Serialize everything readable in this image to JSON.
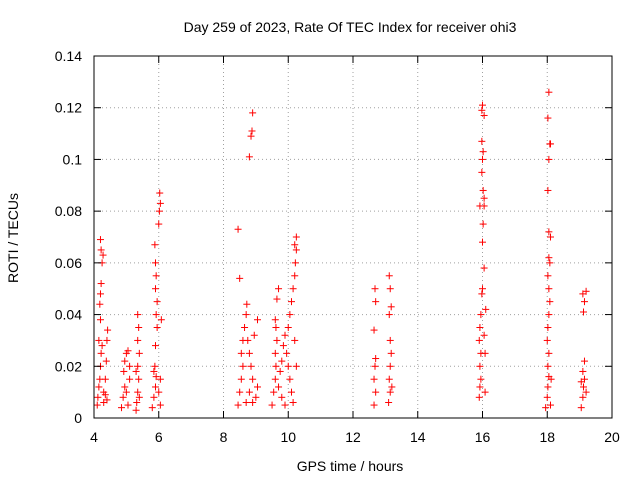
{
  "chart_data": {
    "type": "scatter",
    "title": "Day 259 of 2023, Rate Of TEC Index for receiver ohi3",
    "xlabel": "GPS time / hours",
    "ylabel": "ROTI / TECUs",
    "xlim": [
      4,
      20
    ],
    "ylim": [
      0,
      0.14
    ],
    "x_ticks": [
      4,
      6,
      8,
      10,
      12,
      14,
      16,
      18,
      20
    ],
    "y_ticks": [
      0,
      0.02,
      0.04,
      0.06,
      0.08,
      0.1,
      0.12,
      0.14
    ],
    "grid": true,
    "marker": "plus",
    "color": "#ff0000",
    "series": [
      {
        "points": [
          [
            4.1,
            0.005
          ],
          [
            4.12,
            0.008
          ],
          [
            4.15,
            0.012
          ],
          [
            4.18,
            0.015
          ],
          [
            4.2,
            0.02
          ],
          [
            4.22,
            0.025
          ],
          [
            4.25,
            0.028
          ],
          [
            4.15,
            0.03
          ],
          [
            4.2,
            0.038
          ],
          [
            4.18,
            0.044
          ],
          [
            4.2,
            0.048
          ],
          [
            4.22,
            0.052
          ],
          [
            4.25,
            0.06
          ],
          [
            4.28,
            0.063
          ],
          [
            4.22,
            0.065
          ],
          [
            4.2,
            0.069
          ],
          [
            4.3,
            0.01
          ],
          [
            4.35,
            0.015
          ],
          [
            4.38,
            0.022
          ],
          [
            4.4,
            0.03
          ],
          [
            4.42,
            0.034
          ],
          [
            4.3,
            0.006
          ],
          [
            4.35,
            0.009
          ],
          [
            4.4,
            0.007
          ],
          [
            4.85,
            0.004
          ],
          [
            4.9,
            0.008
          ],
          [
            4.95,
            0.012
          ],
          [
            4.92,
            0.018
          ],
          [
            4.95,
            0.022
          ],
          [
            5.0,
            0.025
          ],
          [
            5.05,
            0.026
          ],
          [
            5.0,
            0.01
          ],
          [
            5.05,
            0.005
          ],
          [
            5.1,
            0.015
          ],
          [
            5.1,
            0.02
          ],
          [
            5.3,
            0.003
          ],
          [
            5.32,
            0.006
          ],
          [
            5.35,
            0.01
          ],
          [
            5.38,
            0.015
          ],
          [
            5.35,
            0.02
          ],
          [
            5.4,
            0.025
          ],
          [
            5.35,
            0.03
          ],
          [
            5.38,
            0.035
          ],
          [
            5.35,
            0.04
          ],
          [
            5.3,
            0.018
          ],
          [
            5.4,
            0.008
          ],
          [
            5.8,
            0.004
          ],
          [
            5.85,
            0.008
          ],
          [
            5.9,
            0.012
          ],
          [
            5.92,
            0.016
          ],
          [
            5.88,
            0.02
          ],
          [
            5.9,
            0.028
          ],
          [
            5.95,
            0.035
          ],
          [
            5.92,
            0.04
          ],
          [
            5.95,
            0.045
          ],
          [
            5.9,
            0.05
          ],
          [
            5.92,
            0.055
          ],
          [
            5.9,
            0.06
          ],
          [
            5.88,
            0.067
          ],
          [
            6.0,
            0.075
          ],
          [
            6.02,
            0.08
          ],
          [
            6.05,
            0.083
          ],
          [
            6.03,
            0.087
          ],
          [
            6.0,
            0.01
          ],
          [
            6.05,
            0.015
          ],
          [
            6.05,
            0.005
          ],
          [
            6.08,
            0.038
          ],
          [
            5.85,
            0.018
          ],
          [
            8.45,
            0.073
          ],
          [
            8.5,
            0.054
          ],
          [
            8.45,
            0.005
          ],
          [
            8.5,
            0.01
          ],
          [
            8.55,
            0.015
          ],
          [
            8.6,
            0.02
          ],
          [
            8.55,
            0.025
          ],
          [
            8.6,
            0.03
          ],
          [
            8.65,
            0.035
          ],
          [
            8.7,
            0.04
          ],
          [
            8.72,
            0.044
          ],
          [
            8.75,
            0.03
          ],
          [
            8.8,
            0.025
          ],
          [
            8.85,
            0.02
          ],
          [
            8.9,
            0.015
          ],
          [
            8.8,
            0.01
          ],
          [
            8.9,
            0.006
          ],
          [
            9.0,
            0.008
          ],
          [
            9.05,
            0.012
          ],
          [
            8.95,
            0.032
          ],
          [
            9.05,
            0.038
          ],
          [
            8.8,
            0.101
          ],
          [
            8.85,
            0.109
          ],
          [
            8.88,
            0.111
          ],
          [
            8.9,
            0.118
          ],
          [
            8.7,
            0.006
          ],
          [
            9.5,
            0.005
          ],
          [
            9.55,
            0.01
          ],
          [
            9.6,
            0.015
          ],
          [
            9.62,
            0.02
          ],
          [
            9.6,
            0.025
          ],
          [
            9.65,
            0.03
          ],
          [
            9.62,
            0.035
          ],
          [
            9.6,
            0.038
          ],
          [
            9.65,
            0.046
          ],
          [
            9.7,
            0.05
          ],
          [
            9.7,
            0.012
          ],
          [
            9.75,
            0.018
          ],
          [
            9.8,
            0.022
          ],
          [
            9.85,
            0.028
          ],
          [
            9.9,
            0.032
          ],
          [
            9.95,
            0.025
          ],
          [
            10.0,
            0.02
          ],
          [
            10.05,
            0.015
          ],
          [
            10.1,
            0.01
          ],
          [
            10.15,
            0.006
          ],
          [
            10.0,
            0.035
          ],
          [
            10.05,
            0.04
          ],
          [
            10.1,
            0.045
          ],
          [
            10.15,
            0.05
          ],
          [
            10.2,
            0.055
          ],
          [
            10.22,
            0.06
          ],
          [
            10.25,
            0.065
          ],
          [
            10.2,
            0.067
          ],
          [
            10.25,
            0.07
          ],
          [
            9.8,
            0.008
          ],
          [
            9.9,
            0.005
          ],
          [
            10.2,
            0.03
          ],
          [
            10.25,
            0.02
          ],
          [
            12.65,
            0.005
          ],
          [
            12.7,
            0.01
          ],
          [
            12.65,
            0.015
          ],
          [
            12.68,
            0.02
          ],
          [
            12.7,
            0.023
          ],
          [
            12.65,
            0.034
          ],
          [
            12.7,
            0.045
          ],
          [
            12.68,
            0.05
          ],
          [
            13.1,
            0.006
          ],
          [
            13.15,
            0.01
          ],
          [
            13.12,
            0.015
          ],
          [
            13.15,
            0.02
          ],
          [
            13.18,
            0.025
          ],
          [
            13.15,
            0.03
          ],
          [
            13.12,
            0.04
          ],
          [
            13.18,
            0.043
          ],
          [
            13.15,
            0.05
          ],
          [
            13.12,
            0.055
          ],
          [
            13.2,
            0.012
          ],
          [
            15.9,
            0.008
          ],
          [
            15.92,
            0.012
          ],
          [
            15.95,
            0.015
          ],
          [
            15.92,
            0.02
          ],
          [
            15.95,
            0.025
          ],
          [
            15.9,
            0.03
          ],
          [
            15.92,
            0.035
          ],
          [
            15.95,
            0.04
          ],
          [
            15.98,
            0.048
          ],
          [
            16.0,
            0.05
          ],
          [
            16.05,
            0.058
          ],
          [
            16.0,
            0.068
          ],
          [
            16.02,
            0.075
          ],
          [
            16.05,
            0.082
          ],
          [
            15.92,
            0.082
          ],
          [
            16.05,
            0.085
          ],
          [
            16.02,
            0.088
          ],
          [
            15.98,
            0.095
          ],
          [
            16.0,
            0.1
          ],
          [
            16.02,
            0.103
          ],
          [
            15.98,
            0.107
          ],
          [
            16.05,
            0.117
          ],
          [
            15.98,
            0.119
          ],
          [
            16.0,
            0.121
          ],
          [
            16.05,
            0.032
          ],
          [
            16.08,
            0.025
          ],
          [
            16.08,
            0.01
          ],
          [
            16.1,
            0.042
          ],
          [
            17.95,
            0.004
          ],
          [
            18.0,
            0.008
          ],
          [
            18.02,
            0.012
          ],
          [
            18.05,
            0.016
          ],
          [
            18.02,
            0.02
          ],
          [
            18.05,
            0.025
          ],
          [
            18.0,
            0.03
          ],
          [
            18.02,
            0.035
          ],
          [
            18.05,
            0.04
          ],
          [
            18.08,
            0.045
          ],
          [
            18.05,
            0.05
          ],
          [
            18.02,
            0.055
          ],
          [
            18.08,
            0.06
          ],
          [
            18.05,
            0.062
          ],
          [
            18.1,
            0.07
          ],
          [
            18.05,
            0.072
          ],
          [
            18.02,
            0.088
          ],
          [
            18.05,
            0.1
          ],
          [
            18.08,
            0.106
          ],
          [
            18.1,
            0.106
          ],
          [
            18.02,
            0.116
          ],
          [
            18.05,
            0.126
          ],
          [
            18.1,
            0.005
          ],
          [
            18.12,
            0.015
          ],
          [
            19.05,
            0.004
          ],
          [
            19.1,
            0.008
          ],
          [
            19.12,
            0.012
          ],
          [
            19.15,
            0.015
          ],
          [
            19.1,
            0.018
          ],
          [
            19.15,
            0.022
          ],
          [
            19.12,
            0.041
          ],
          [
            19.15,
            0.045
          ],
          [
            19.1,
            0.048
          ],
          [
            19.2,
            0.049
          ],
          [
            19.2,
            0.01
          ],
          [
            19.05,
            0.014
          ]
        ]
      }
    ]
  }
}
